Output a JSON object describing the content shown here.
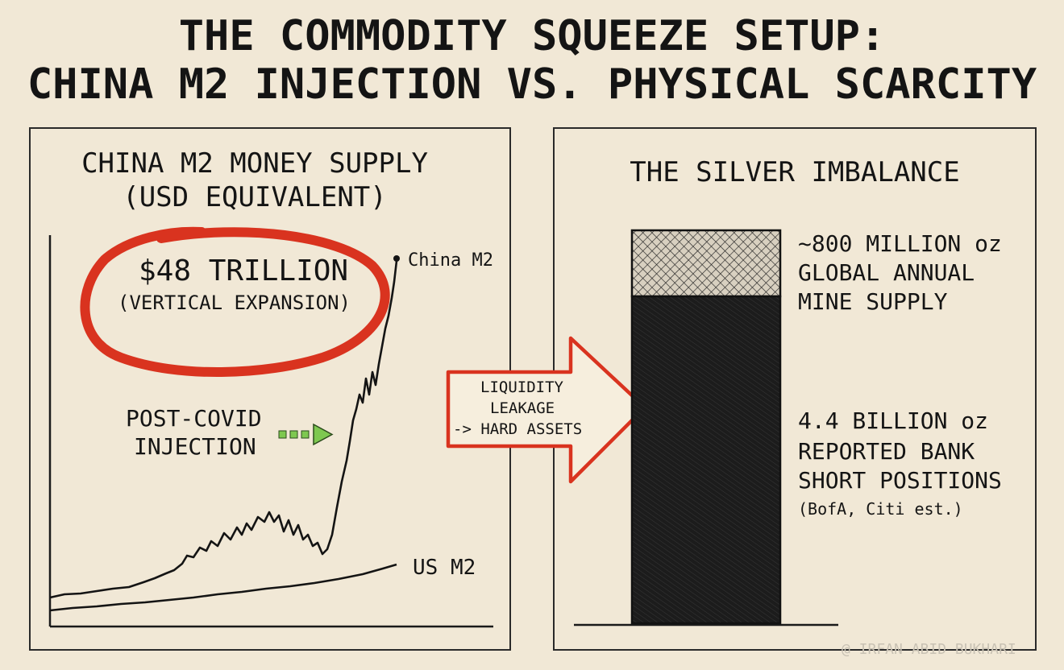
{
  "title": {
    "line1": "THE COMMODITY SQUEEZE SETUP:",
    "line2": "CHINA M2 INJECTION VS. PHYSICAL SCARCITY"
  },
  "left_panel": {
    "title_line1": "CHINA M2 MONEY SUPPLY",
    "title_line2": "(USD EQUIVALENT)",
    "callout_value": "$48 TRILLION",
    "callout_note": "(VERTICAL EXPANSION)",
    "series_china": "China M2",
    "series_us": "US M2",
    "annotation_line1": "POST-COVID",
    "annotation_line2": "INJECTION"
  },
  "arrow": {
    "line1": "LIQUIDITY",
    "line2": "LEAKAGE",
    "line3": "-> HARD ASSETS"
  },
  "right_panel": {
    "title": "THE SILVER IMBALANCE",
    "supply_line1": "~800 MILLION oz",
    "supply_line2": "GLOBAL ANNUAL",
    "supply_line3": "MINE SUPPLY",
    "short_line1": "4.4 BILLION oz",
    "short_line2": "REPORTED BANK",
    "short_line3": "SHORT POSITIONS",
    "short_line4": "(BofA, Citi est.)"
  },
  "watermark": "@ IRFAN ABID BUKHARI",
  "colors": {
    "background": "#f1e8d6",
    "ink": "#141414",
    "accent_red": "#d9331f",
    "accent_green": "#7ec850"
  }
}
